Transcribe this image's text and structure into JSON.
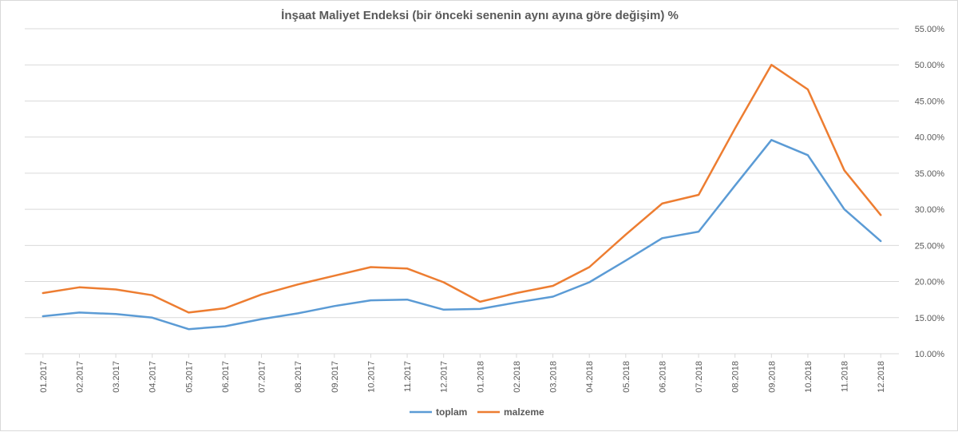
{
  "chart_data": {
    "type": "line",
    "title": "İnşaat Maliyet Endeksi (bir önceki senenin aynı ayına göre değişim) %",
    "x": [
      "01.2017",
      "02.2017",
      "03.2017",
      "04.2017",
      "05.2017",
      "06.2017",
      "07.2017",
      "08.2017",
      "09.2017",
      "10.2017",
      "11.2017",
      "12.2017",
      "01.2018",
      "02.2018",
      "03.2018",
      "04.2018",
      "05.2018",
      "06.2018",
      "07.2018",
      "08.2018",
      "09.2018",
      "10.2018",
      "11.2018",
      "12.2018"
    ],
    "series": [
      {
        "name": "toplam",
        "color": "#5b9bd5",
        "values": [
          15.2,
          15.7,
          15.5,
          15.0,
          13.4,
          13.8,
          14.8,
          15.6,
          16.6,
          17.4,
          17.5,
          16.1,
          16.2,
          17.1,
          17.9,
          19.9,
          22.9,
          26.0,
          26.9,
          33.3,
          39.6,
          37.5,
          30.0,
          25.6
        ]
      },
      {
        "name": "malzeme",
        "color": "#ed7d31",
        "values": [
          18.4,
          19.2,
          18.9,
          18.1,
          15.7,
          16.3,
          18.2,
          19.6,
          20.8,
          22.0,
          21.8,
          19.9,
          17.2,
          18.4,
          19.4,
          22.0,
          26.5,
          30.8,
          32.0,
          41.2,
          50.0,
          46.6,
          35.4,
          29.2
        ]
      }
    ],
    "ylim": [
      10,
      55
    ],
    "yticks": [
      10,
      15,
      20,
      25,
      30,
      35,
      40,
      45,
      50,
      55
    ],
    "ytick_labels": [
      "10.00%",
      "15.00%",
      "20.00%",
      "25.00%",
      "30.00%",
      "35.00%",
      "40.00%",
      "45.00%",
      "50.00%",
      "55.00%"
    ],
    "y_axis_position": "right",
    "grid": true,
    "legend_position": "bottom-center"
  }
}
